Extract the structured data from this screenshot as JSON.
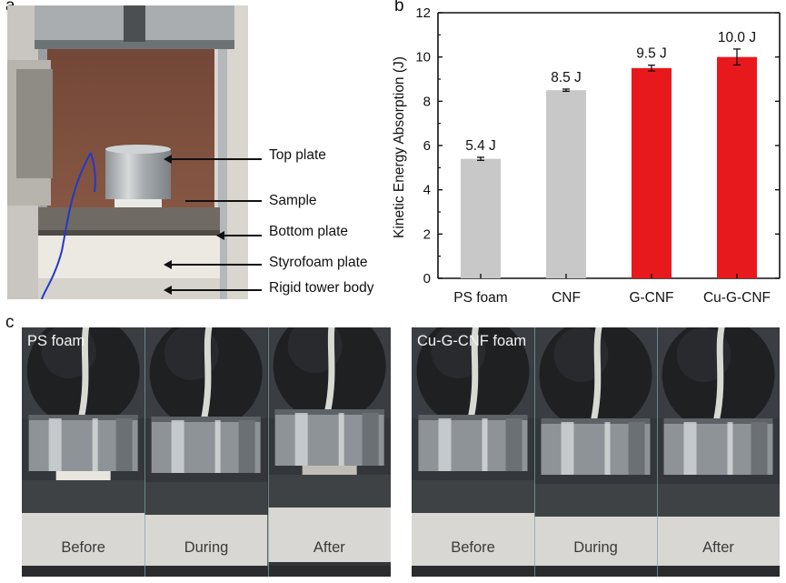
{
  "panel_a": {
    "letter": "a",
    "labels": [
      "Top plate",
      "Sample",
      "Bottom plate",
      "Styrofoam plate",
      "Rigid tower body"
    ]
  },
  "panel_b": {
    "letter": "b"
  },
  "chart_data": {
    "type": "bar",
    "categories": [
      "PS foam",
      "CNF",
      "G-CNF",
      "Cu-G-CNF"
    ],
    "values": [
      5.4,
      8.5,
      9.5,
      10.0
    ],
    "errors": [
      0.07,
      0.05,
      0.13,
      0.36
    ],
    "value_labels": [
      "5.4 J",
      "8.5 J",
      "9.5 J",
      "10.0 J"
    ],
    "bar_colors": [
      "#c8c8c8",
      "#c8c8c8",
      "#e8191c",
      "#e8191c"
    ],
    "ylabel": "Kinetic Energy Absorption (J)",
    "xlabel": "",
    "ylim": [
      0,
      12
    ],
    "yticks": [
      0,
      2,
      4,
      6,
      8,
      10,
      12
    ],
    "grid": false
  },
  "panel_c": {
    "letter": "c",
    "left_title": "PS foam",
    "right_title": "Cu-G-CNF foam",
    "left_captions": [
      "Before",
      "During",
      "After"
    ],
    "right_captions": [
      "Before",
      "During",
      "After"
    ]
  }
}
